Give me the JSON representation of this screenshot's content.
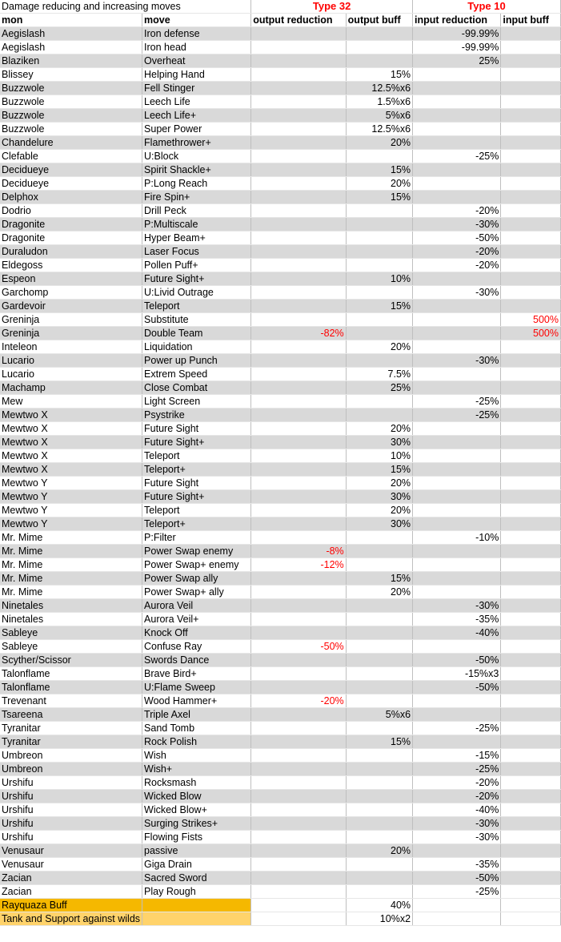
{
  "title": "Damage reducing and increasing moves",
  "groups": {
    "type32": "Type 32",
    "type10": "Type 10"
  },
  "headers": [
    "mon",
    "move",
    "output reduction",
    "output buff",
    "input reduction",
    "input buff"
  ],
  "rows": [
    [
      "Aegislash",
      "Iron defense",
      "",
      "",
      "-99.99%",
      ""
    ],
    [
      "Aegislash",
      "Iron head",
      "",
      "",
      "-99.99%",
      ""
    ],
    [
      "Blaziken",
      "Overheat",
      "",
      "",
      "25%",
      ""
    ],
    [
      "Blissey",
      "Helping Hand",
      "",
      "15%",
      "",
      ""
    ],
    [
      "Buzzwole",
      "Fell Stinger",
      "",
      "12.5%x6",
      "",
      ""
    ],
    [
      "Buzzwole",
      "Leech Life",
      "",
      "1.5%x6",
      "",
      ""
    ],
    [
      "Buzzwole",
      "Leech Life+",
      "",
      "5%x6",
      "",
      ""
    ],
    [
      "Buzzwole",
      "Super Power",
      "",
      "12.5%x6",
      "",
      ""
    ],
    [
      "Chandelure",
      "Flamethrower+",
      "",
      "20%",
      "",
      ""
    ],
    [
      "Clefable",
      "U:Block",
      "",
      "",
      "-25%",
      ""
    ],
    [
      "Decidueye",
      "Spirit Shackle+",
      "",
      "15%",
      "",
      ""
    ],
    [
      "Decidueye",
      "P:Long Reach",
      "",
      "20%",
      "",
      ""
    ],
    [
      "Delphox",
      "Fire Spin+",
      "",
      "15%",
      "",
      ""
    ],
    [
      "Dodrio",
      "Drill Peck",
      "",
      "",
      "-20%",
      ""
    ],
    [
      "Dragonite",
      "P:Multiscale",
      "",
      "",
      "-30%",
      ""
    ],
    [
      "Dragonite",
      "Hyper Beam+",
      "",
      "",
      "-50%",
      ""
    ],
    [
      "Duraludon",
      "Laser Focus",
      "",
      "",
      "-20%",
      ""
    ],
    [
      "Eldegoss",
      "Pollen Puff+",
      "",
      "",
      "-20%",
      ""
    ],
    [
      "Espeon",
      "Future Sight+",
      "",
      "10%",
      "",
      ""
    ],
    [
      "Garchomp",
      "U:Livid Outrage",
      "",
      "",
      "-30%",
      ""
    ],
    [
      "Gardevoir",
      "Teleport",
      "",
      "15%",
      "",
      ""
    ],
    [
      "Greninja",
      "Substitute",
      "",
      "",
      "",
      "500%"
    ],
    [
      "Greninja",
      "Double Team",
      "-82%",
      "",
      "",
      "500%"
    ],
    [
      "Inteleon",
      "Liquidation",
      "",
      "20%",
      "",
      ""
    ],
    [
      "Lucario",
      "Power up Punch",
      "",
      "",
      "-30%",
      ""
    ],
    [
      "Lucario",
      "Extrem Speed",
      "",
      "7.5%",
      "",
      ""
    ],
    [
      "Machamp",
      "Close Combat",
      "",
      "25%",
      "",
      ""
    ],
    [
      "Mew",
      "Light Screen",
      "",
      "",
      "-25%",
      ""
    ],
    [
      "Mewtwo X",
      "Psystrike",
      "",
      "",
      "-25%",
      ""
    ],
    [
      "Mewtwo X",
      "Future Sight",
      "",
      "20%",
      "",
      ""
    ],
    [
      "Mewtwo X",
      "Future Sight+",
      "",
      "30%",
      "",
      ""
    ],
    [
      "Mewtwo X",
      "Teleport",
      "",
      "10%",
      "",
      ""
    ],
    [
      "Mewtwo X",
      "Teleport+",
      "",
      "15%",
      "",
      ""
    ],
    [
      "Mewtwo Y",
      "Future Sight",
      "",
      "20%",
      "",
      ""
    ],
    [
      "Mewtwo Y",
      "Future Sight+",
      "",
      "30%",
      "",
      ""
    ],
    [
      "Mewtwo Y",
      "Teleport",
      "",
      "20%",
      "",
      ""
    ],
    [
      "Mewtwo Y",
      "Teleport+",
      "",
      "30%",
      "",
      ""
    ],
    [
      "Mr. Mime",
      "P:Filter",
      "",
      "",
      "-10%",
      ""
    ],
    [
      "Mr. Mime",
      "Power Swap enemy",
      "-8%",
      "",
      "",
      ""
    ],
    [
      "Mr. Mime",
      "Power Swap+ enemy",
      "-12%",
      "",
      "",
      ""
    ],
    [
      "Mr. Mime",
      "Power Swap ally",
      "",
      "15%",
      "",
      ""
    ],
    [
      "Mr. Mime",
      "Power Swap+ ally",
      "",
      "20%",
      "",
      ""
    ],
    [
      "Ninetales",
      "Aurora Veil",
      "",
      "",
      "-30%",
      ""
    ],
    [
      "Ninetales",
      "Aurora Veil+",
      "",
      "",
      "-35%",
      ""
    ],
    [
      "Sableye",
      "Knock Off",
      "",
      "",
      "-40%",
      ""
    ],
    [
      "Sableye",
      "Confuse Ray",
      "-50%",
      "",
      "",
      ""
    ],
    [
      "Scyther/Scissor",
      "Swords Dance",
      "",
      "",
      "-50%",
      ""
    ],
    [
      "Talonflame",
      "Brave Bird+",
      "",
      "",
      "-15%x3",
      ""
    ],
    [
      "Talonflame",
      "U:Flame Sweep",
      "",
      "",
      "-50%",
      ""
    ],
    [
      "Trevenant",
      "Wood Hammer+",
      "-20%",
      "",
      "",
      ""
    ],
    [
      "Tsareena",
      "Triple Axel",
      "",
      "5%x6",
      "",
      ""
    ],
    [
      "Tyranitar",
      "Sand Tomb",
      "",
      "",
      "-25%",
      ""
    ],
    [
      "Tyranitar",
      "Rock Polish",
      "",
      "15%",
      "",
      ""
    ],
    [
      "Umbreon",
      "Wish",
      "",
      "",
      "-15%",
      ""
    ],
    [
      "Umbreon",
      "Wish+",
      "",
      "",
      "-25%",
      ""
    ],
    [
      "Urshifu",
      "Rocksmash",
      "",
      "",
      "-20%",
      ""
    ],
    [
      "Urshifu",
      "Wicked Blow",
      "",
      "",
      "-20%",
      ""
    ],
    [
      "Urshifu",
      "Wicked Blow+",
      "",
      "",
      "-40%",
      ""
    ],
    [
      "Urshifu",
      "Surging Strikes+",
      "",
      "",
      "-30%",
      ""
    ],
    [
      "Urshifu",
      "Flowing Fists",
      "",
      "",
      "-30%",
      ""
    ],
    [
      "Venusaur",
      "passive",
      "",
      "20%",
      "",
      ""
    ],
    [
      "Venusaur",
      "Giga Drain",
      "",
      "",
      "-35%",
      ""
    ],
    [
      "Zacian",
      "Sacred Sword",
      "",
      "",
      "-50%",
      ""
    ],
    [
      "Zacian",
      "Play Rough",
      "",
      "",
      "-25%",
      ""
    ]
  ],
  "footer": [
    {
      "label": "Rayquaza Buff",
      "output_buff": "40%"
    },
    {
      "label": "Tank and Support against wilds",
      "output_buff": "10%x2"
    }
  ],
  "colors": {
    "row_shade": "#d9d9d9",
    "negative_text": "#ff0000",
    "group_header_text": "#ff0000",
    "rayquaza_fill": "#f5b800",
    "tank_fill": "#ffd36b"
  }
}
